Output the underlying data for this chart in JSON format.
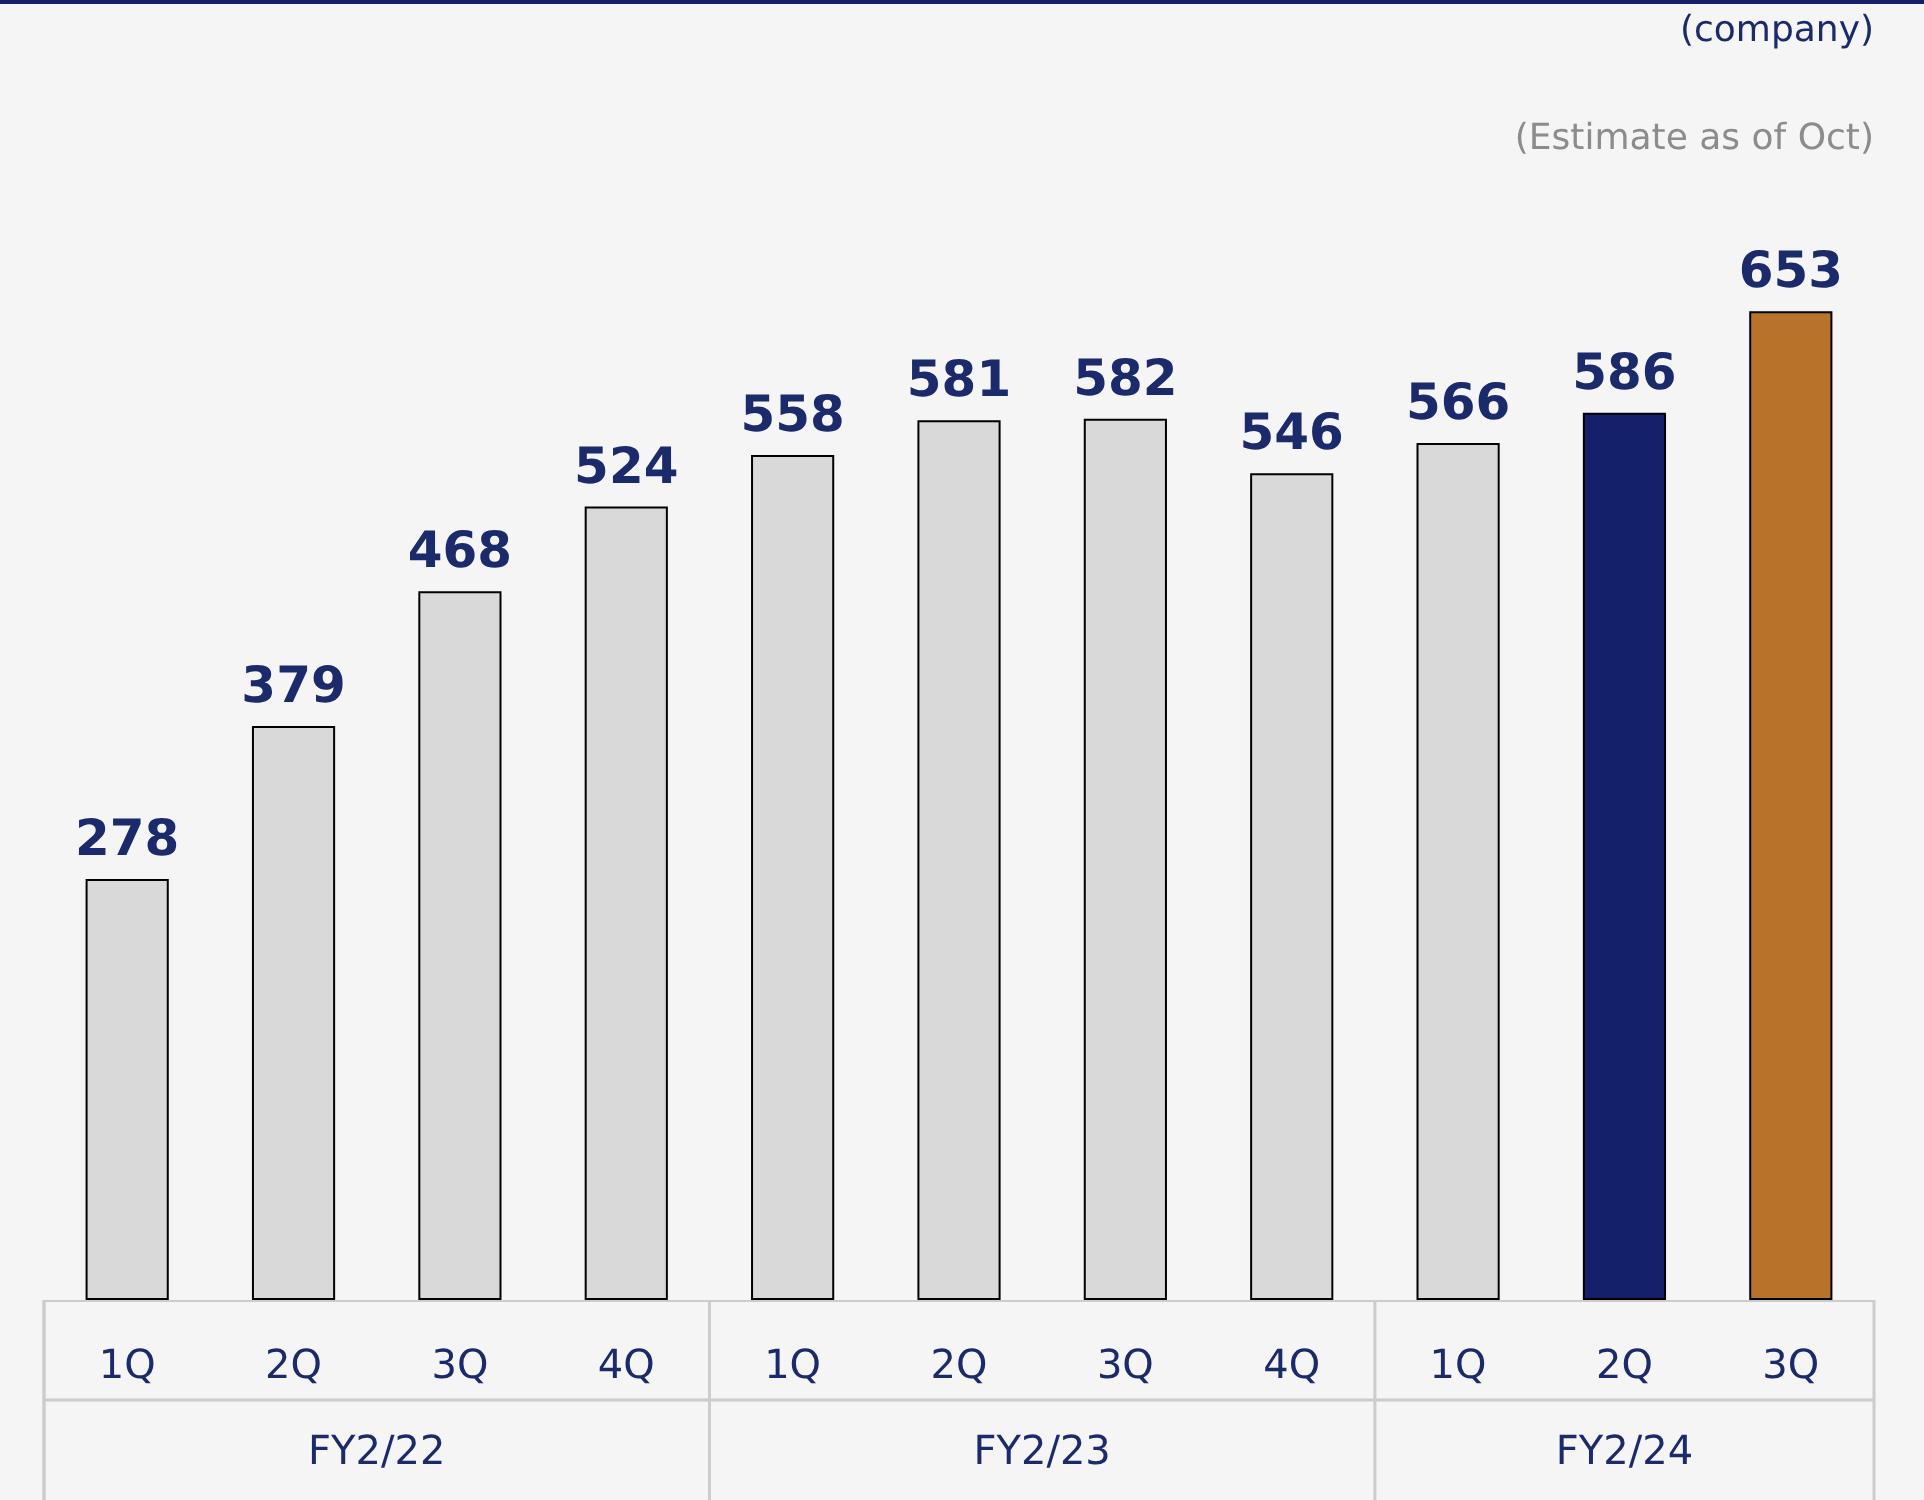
{
  "chart_data": {
    "type": "bar",
    "categories": [
      "1Q",
      "2Q",
      "3Q",
      "4Q",
      "1Q",
      "2Q",
      "3Q",
      "4Q",
      "1Q",
      "2Q",
      "3Q"
    ],
    "values": [
      278,
      379,
      468,
      524,
      558,
      581,
      582,
      546,
      566,
      586,
      653
    ],
    "colors": [
      "#d9d9d9",
      "#d9d9d9",
      "#d9d9d9",
      "#d9d9d9",
      "#d9d9d9",
      "#d9d9d9",
      "#d9d9d9",
      "#d9d9d9",
      "#d9d9d9",
      "#14206a",
      "#b8732a"
    ],
    "data_labels": true,
    "annotations": [
      "(company)",
      "(Estimate as of Oct)",
      "FY2/22",
      "FY2/23",
      "FY2/24"
    ]
  }
}
